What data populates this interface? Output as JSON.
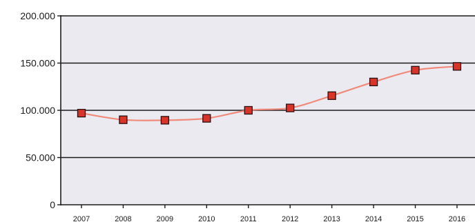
{
  "chart_data": {
    "type": "line",
    "title": "",
    "xlabel": "",
    "ylabel": "",
    "x": [
      "2007",
      "2008",
      "2009",
      "2010",
      "2011",
      "2012",
      "2013",
      "2014",
      "2015",
      "2016"
    ],
    "series": [
      {
        "values": [
          97000,
          90000,
          89500,
          91500,
          100000,
          102500,
          115500,
          130000,
          142500,
          146500
        ]
      }
    ],
    "ylim": [
      0,
      200000
    ],
    "yticks": [
      0,
      50000,
      100000,
      150000,
      200000
    ],
    "ytick_labels": [
      "0",
      "50.000",
      "100.000",
      "150.000",
      "200.000"
    ],
    "grid": "horizontal",
    "legend": "none",
    "colors": {
      "plot_background": "#ebeaf1",
      "line": "#f08a7a",
      "marker_fill": "#d8342a",
      "marker_stroke": "#2a1010",
      "gridline": "#1a1a1a",
      "axis": "#1a1a1a"
    },
    "marker": "square"
  }
}
